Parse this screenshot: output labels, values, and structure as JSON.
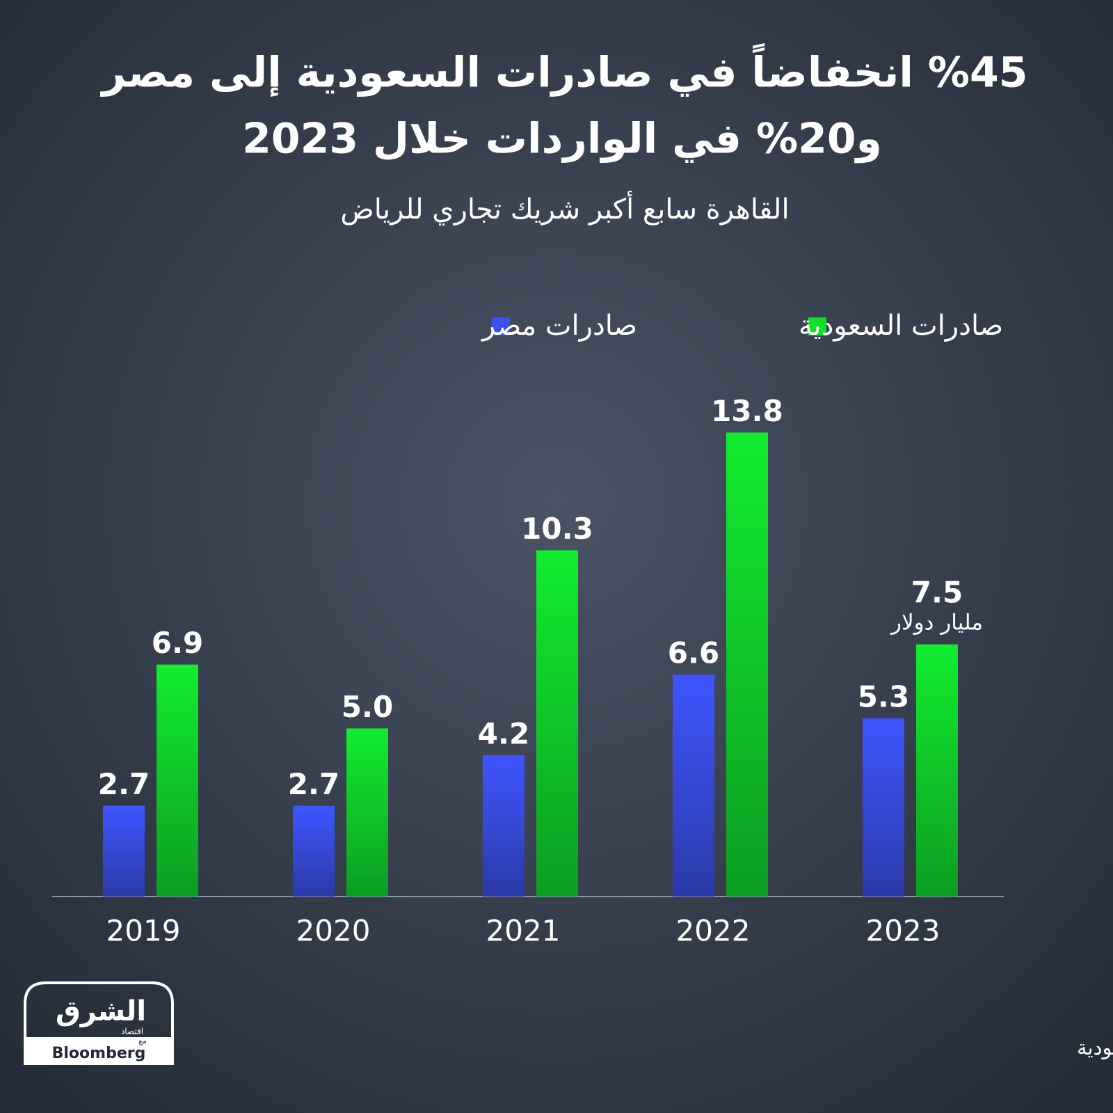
{
  "chart_data": {
    "type": "bar",
    "title": [
      "%45 انخفاضاً في صادرات السعودية إلى مصر",
      "و20% في الواردات خلال 2023"
    ],
    "subtitle": "القاهرة سابع أكبر شريك تجاري للرياض",
    "categories": [
      "2019",
      "2020",
      "2021",
      "2022",
      "2023"
    ],
    "series": [
      {
        "name": "صادرات مصر",
        "color": "#3d52f2",
        "values": [
          2.7,
          2.7,
          4.2,
          6.6,
          5.3
        ]
      },
      {
        "name": "صادرات السعودية",
        "color": "#11e02a",
        "values": [
          6.9,
          5.0,
          10.3,
          13.8,
          7.5
        ],
        "value_labels": [
          "6.9",
          "5.0",
          "10.3",
          "13.8",
          "7.5"
        ]
      }
    ],
    "annotation": "مليار دولار",
    "source": "المصدر: بيانات الهيئة العامة للإحصاء السعودية",
    "logo": {
      "name": "الشرق",
      "tagline": "اقتصاد",
      "with": "مع",
      "partner": "Bloomberg"
    }
  }
}
